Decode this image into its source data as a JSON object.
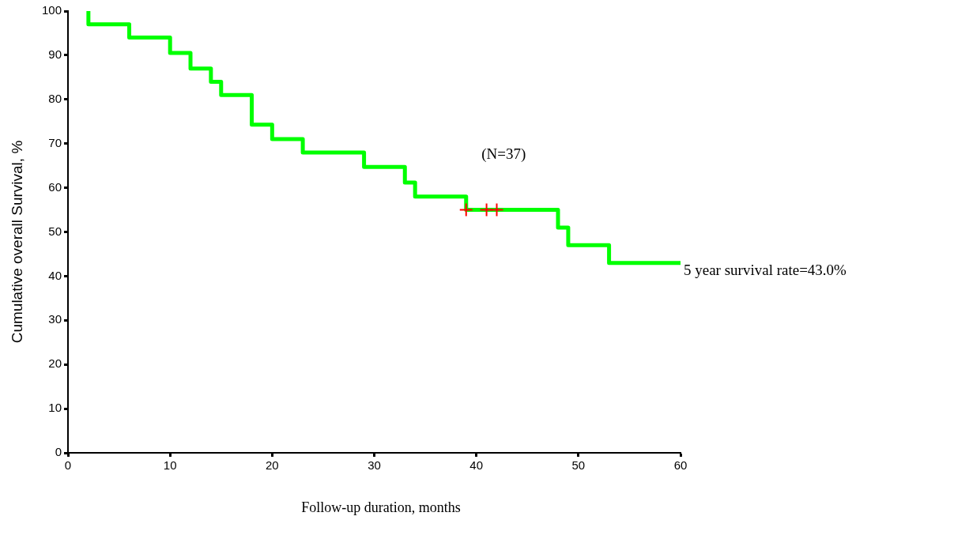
{
  "chart_data": {
    "type": "step",
    "xlabel": "Follow-up duration,  months",
    "ylabel": "Cumulative overall Survival, %",
    "x": [
      2,
      2,
      6,
      10,
      12,
      14,
      15,
      18,
      20,
      23,
      29,
      33,
      34,
      39,
      48,
      49,
      53,
      60
    ],
    "series": [
      {
        "color": "#00ff00",
        "values": [
          100,
          97,
          94,
          90.5,
          87,
          84,
          81,
          74.3,
          71,
          68,
          64.7,
          61.2,
          58,
          55,
          51,
          47,
          43,
          43
        ]
      },
      {
        "type": "scatter",
        "color": "#ff0000",
        "marker": "cross",
        "x": [
          39,
          41,
          42
        ],
        "values": [
          55,
          55,
          55
        ]
      }
    ],
    "xlim": [
      0,
      60
    ],
    "xticks": [
      0,
      10,
      20,
      30,
      40,
      50,
      60
    ],
    "ylim": [
      0,
      100
    ],
    "yticks": [
      0,
      10,
      20,
      30,
      40,
      50,
      60,
      70,
      80,
      90,
      100
    ],
    "grid": false,
    "legend": false,
    "annotations": [
      "(N=37)",
      "5 year survival rate=43.0%"
    ]
  }
}
